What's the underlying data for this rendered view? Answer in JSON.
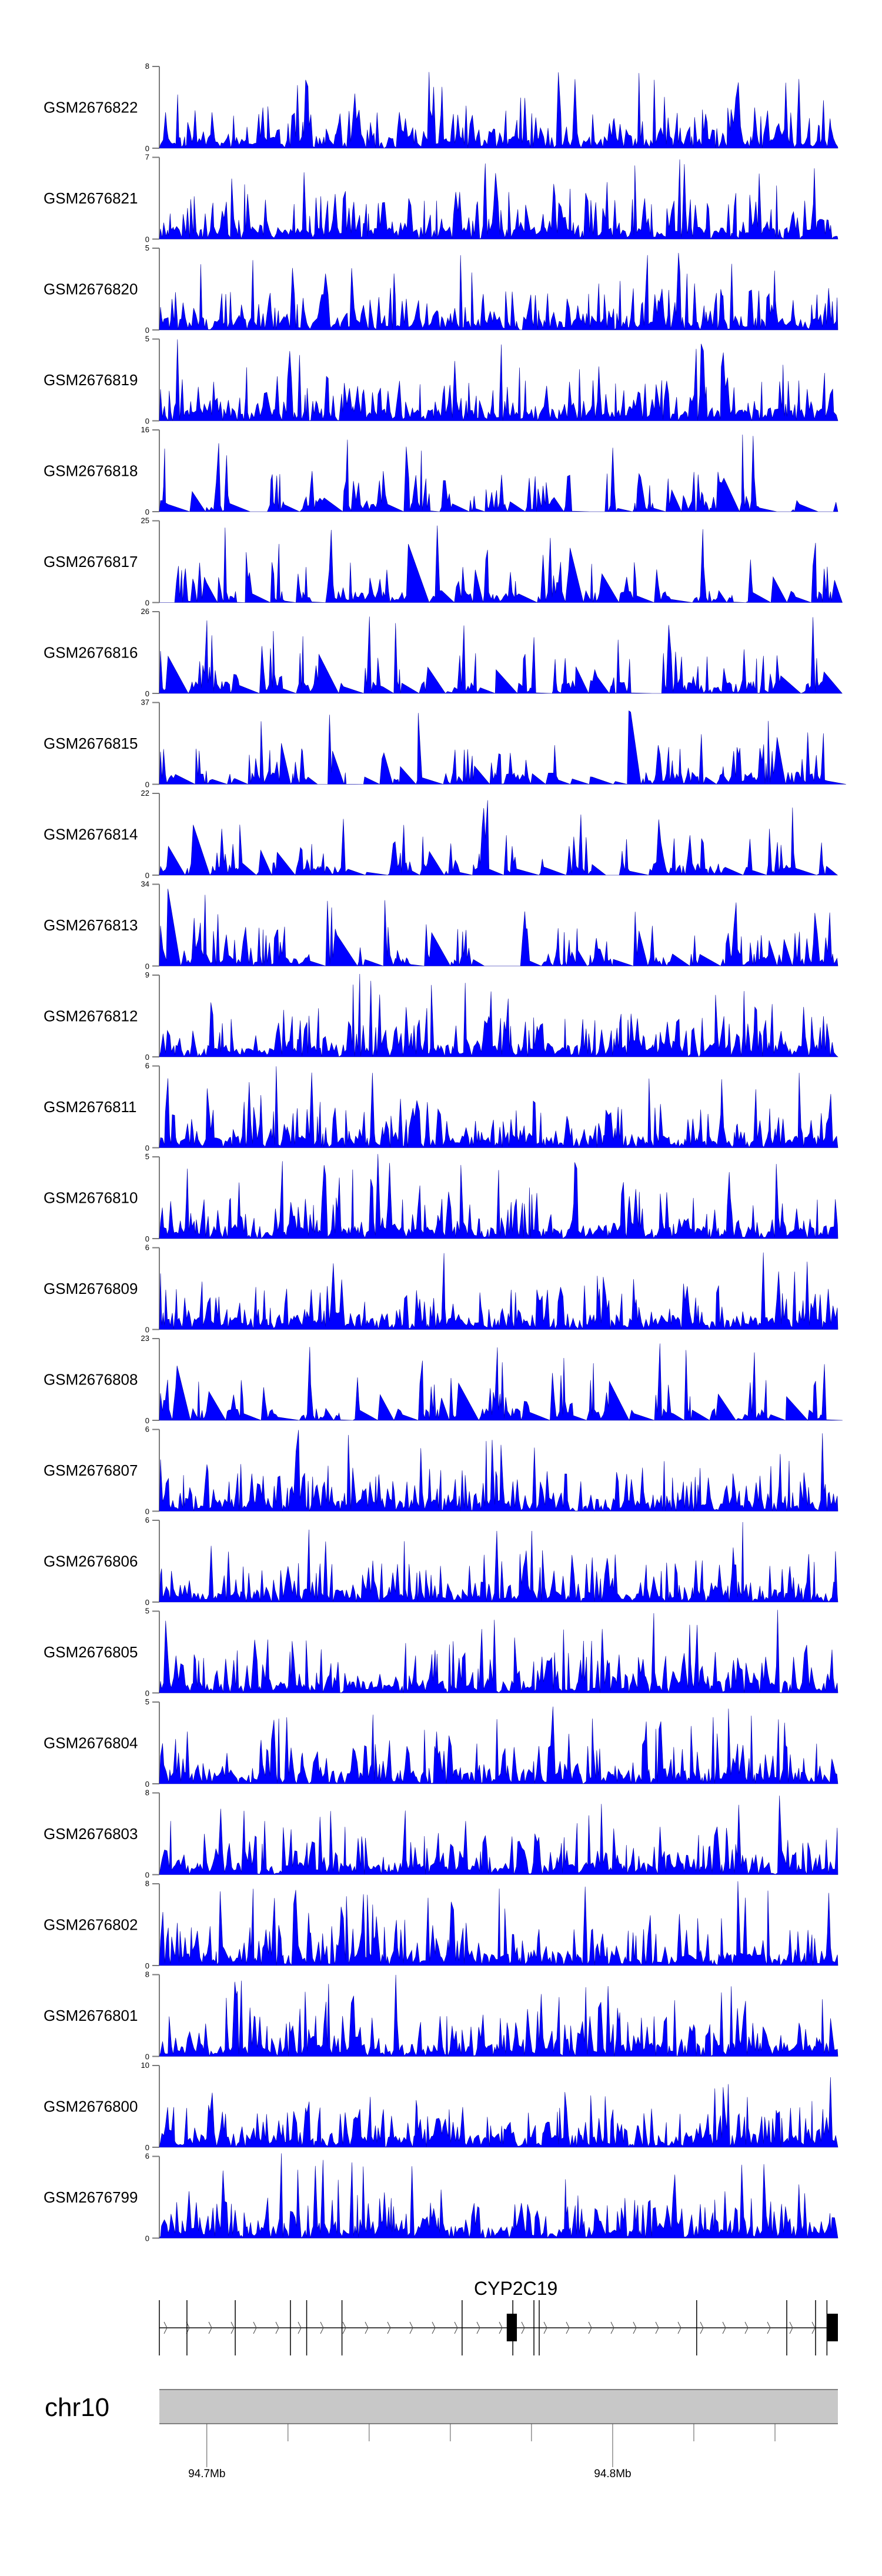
{
  "chart_data": {
    "type": "area",
    "title": "",
    "xlabel": "",
    "ylabel": "",
    "chromosome": "chr10",
    "xlim_mb": [
      94.6883,
      94.8555
    ],
    "x_ticks": [
      {
        "pos_mb": 94.7,
        "label": "94.7Mb"
      },
      {
        "pos_mb": 94.72,
        "label": ""
      },
      {
        "pos_mb": 94.74,
        "label": ""
      },
      {
        "pos_mb": 94.76,
        "label": ""
      },
      {
        "pos_mb": 94.78,
        "label": ""
      },
      {
        "pos_mb": 94.8,
        "label": "94.8Mb"
      },
      {
        "pos_mb": 94.82,
        "label": ""
      },
      {
        "pos_mb": 94.84,
        "label": ""
      }
    ],
    "series_color": "#0000ff",
    "tracks": [
      {
        "name": "GSM2676822",
        "ymin": "0",
        "ymax": "8"
      },
      {
        "name": "GSM2676821",
        "ymin": "0",
        "ymax": "7"
      },
      {
        "name": "GSM2676820",
        "ymin": "0",
        "ymax": "5"
      },
      {
        "name": "GSM2676819",
        "ymin": "0",
        "ymax": "5"
      },
      {
        "name": "GSM2676818",
        "ymin": "0",
        "ymax": "16"
      },
      {
        "name": "GSM2676817",
        "ymin": "0",
        "ymax": "25"
      },
      {
        "name": "GSM2676816",
        "ymin": "0",
        "ymax": "26"
      },
      {
        "name": "GSM2676815",
        "ymin": "0",
        "ymax": "37"
      },
      {
        "name": "GSM2676814",
        "ymin": "0",
        "ymax": "22"
      },
      {
        "name": "GSM2676813",
        "ymin": "0",
        "ymax": "34"
      },
      {
        "name": "GSM2676812",
        "ymin": "0",
        "ymax": "9"
      },
      {
        "name": "GSM2676811",
        "ymin": "0",
        "ymax": "6"
      },
      {
        "name": "GSM2676810",
        "ymin": "0",
        "ymax": "5"
      },
      {
        "name": "GSM2676809",
        "ymin": "0",
        "ymax": "6"
      },
      {
        "name": "GSM2676808",
        "ymin": "0",
        "ymax": "23"
      },
      {
        "name": "GSM2676807",
        "ymin": "0",
        "ymax": "6"
      },
      {
        "name": "GSM2676806",
        "ymin": "0",
        "ymax": "6"
      },
      {
        "name": "GSM2676805",
        "ymin": "0",
        "ymax": "5"
      },
      {
        "name": "GSM2676804",
        "ymin": "0",
        "ymax": "5"
      },
      {
        "name": "GSM2676803",
        "ymin": "0",
        "ymax": "8"
      },
      {
        "name": "GSM2676802",
        "ymin": "0",
        "ymax": "8"
      },
      {
        "name": "GSM2676801",
        "ymin": "0",
        "ymax": "8"
      },
      {
        "name": "GSM2676800",
        "ymin": "0",
        "ymax": "10"
      },
      {
        "name": "GSM2676799",
        "ymin": "0",
        "ymax": "6"
      }
    ],
    "gene": {
      "name": "CYP2C19",
      "strand": "+",
      "start_mb": 94.6883,
      "end_mb": 94.8555,
      "exon_lines_mb": [
        94.6883,
        94.6951,
        94.707,
        94.7206,
        94.7246,
        94.7333,
        94.7629,
        94.7754,
        94.7806,
        94.7819,
        94.8207,
        94.8429,
        94.85,
        94.8528
      ],
      "exon_blocks_mb": [
        [
          94.7739,
          94.7764
        ],
        [
          94.8528,
          94.8555
        ]
      ]
    }
  }
}
